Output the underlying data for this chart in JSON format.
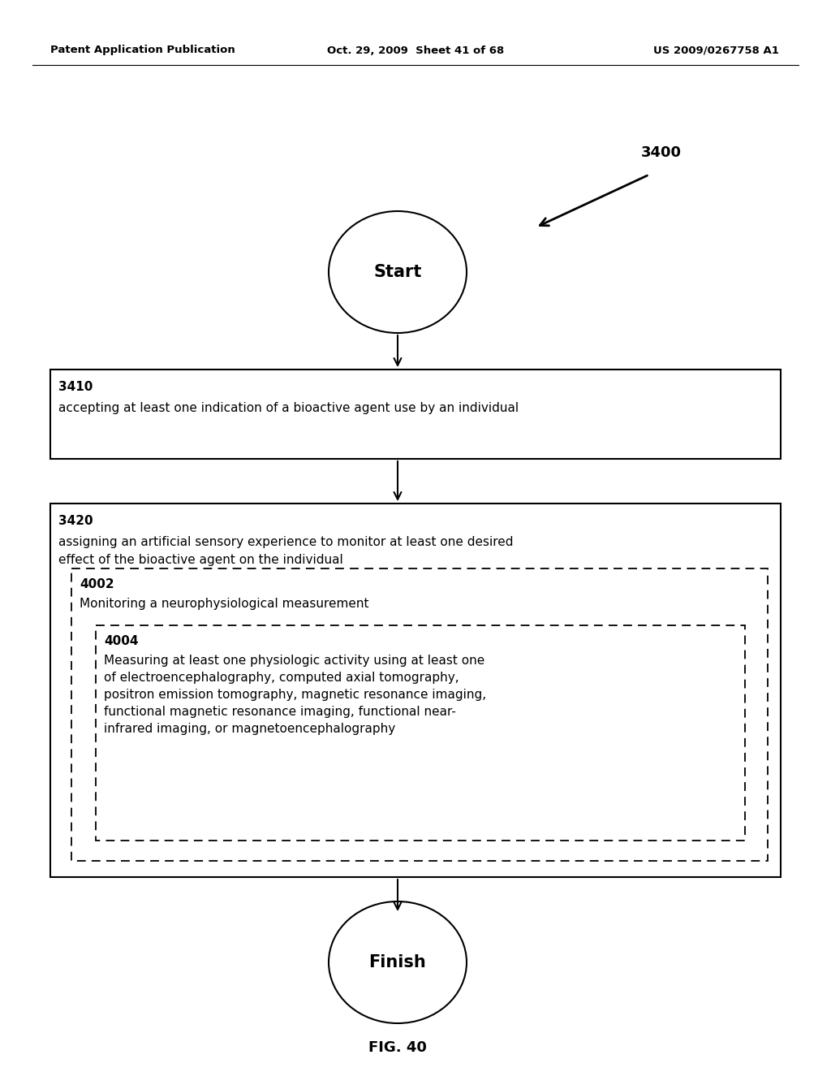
{
  "background_color": "#ffffff",
  "header_left": "Patent Application Publication",
  "header_center": "Oct. 29, 2009  Sheet 41 of 68",
  "header_right": "US 2009/0267758 A1",
  "figure_label": "FIG. 40",
  "diagram_label": "3400",
  "start_label": "Start",
  "finish_label": "Finish",
  "box1_id": "3410",
  "box1_text": "accepting at least one indication of a bioactive agent use by an individual",
  "box2_id": "3420",
  "box2_text_line1": "assigning an artificial sensory experience to monitor at least one desired",
  "box2_text_line2": "effect of the bioactive agent on the individual",
  "dashed1_id": "4002",
  "dashed1_text": "Monitoring a neurophysiological measurement",
  "dashed2_id": "4004",
  "dashed2_text_line1": "Measuring at least one physiologic activity using at least one",
  "dashed2_text_line2": "of electroencephalography, computed axial tomography,",
  "dashed2_text_line3": "positron emission tomography, magnetic resonance imaging,",
  "dashed2_text_line4": "functional magnetic resonance imaging, functional near-",
  "dashed2_text_line5": "infrared imaging, or magnetoencephalography"
}
